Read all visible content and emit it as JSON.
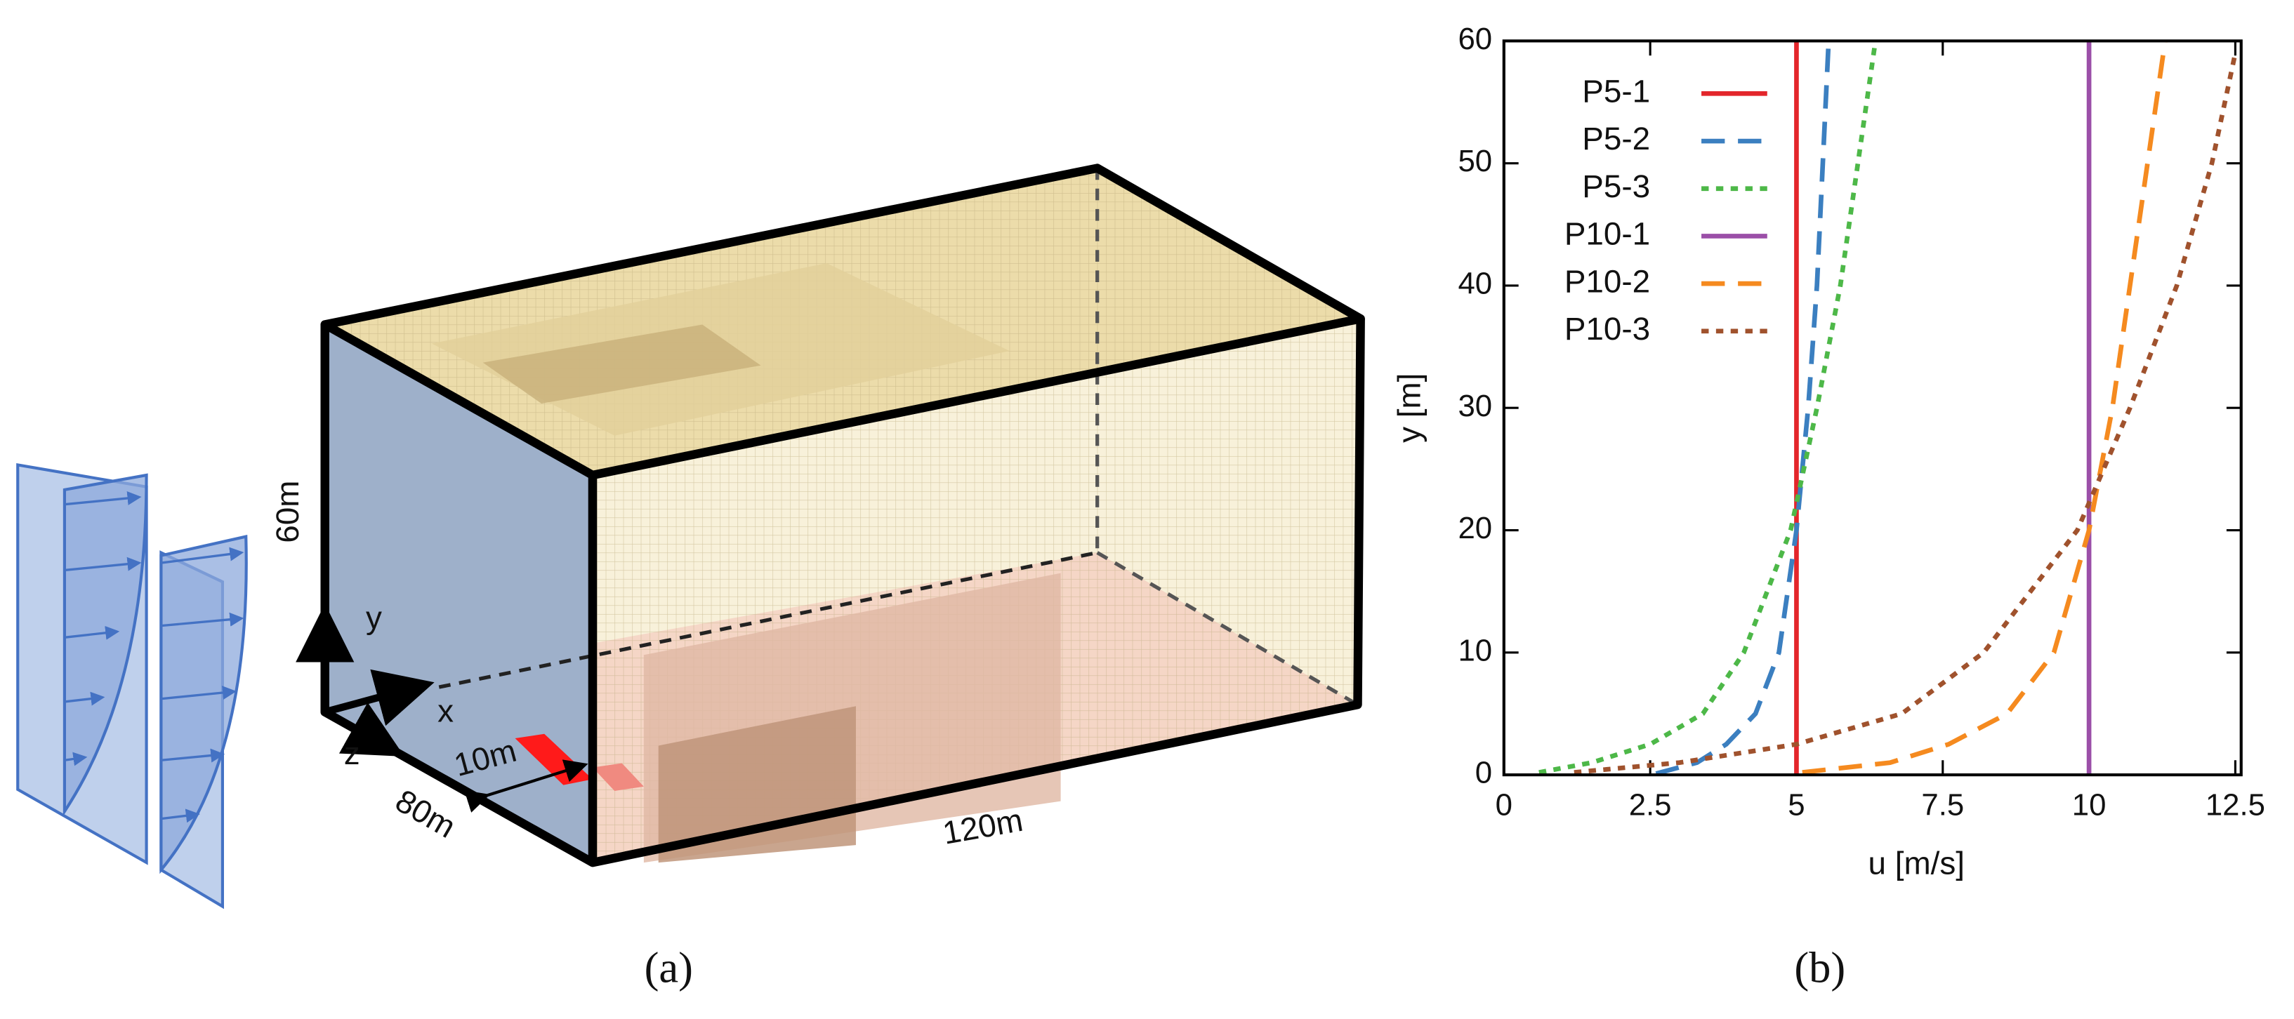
{
  "diagram": {
    "labels": [
      "60m",
      "y",
      "x",
      "z",
      "10m",
      "80m",
      "120m"
    ],
    "caption": "(a)"
  },
  "chart_data": {
    "type": "line",
    "caption": "(b)",
    "x_label": "u [m/s]",
    "y_label": "y [m]",
    "xlim": [
      0,
      12.6
    ],
    "ylim": [
      0,
      60
    ],
    "xticks": [
      0,
      2.5,
      5,
      7.5,
      10,
      12.5
    ],
    "yticks": [
      0,
      10,
      20,
      30,
      40,
      50,
      60
    ],
    "legend": "upper-left",
    "series": [
      {
        "name": "P5-1",
        "color": "#e3262b",
        "dash": "solid",
        "x": [
          5,
          5
        ],
        "y": [
          0,
          60
        ]
      },
      {
        "name": "P5-2",
        "color": "#3b7fc0",
        "dash": "dashed",
        "x": [
          2.6,
          3.3,
          3.8,
          4.3,
          4.7,
          5.0,
          5.2,
          5.35,
          5.45,
          5.55
        ],
        "y": [
          0.1,
          1,
          2.5,
          5,
          10,
          20,
          30,
          40,
          50,
          60
        ]
      },
      {
        "name": "P5-3",
        "color": "#4db848",
        "dash": "dotted",
        "x": [
          0.6,
          1.5,
          2.5,
          3.4,
          4.1,
          4.9,
          5.35,
          5.75,
          6.05,
          6.35
        ],
        "y": [
          0.2,
          1,
          2.5,
          5,
          10,
          20,
          30,
          40,
          50,
          60
        ]
      },
      {
        "name": "P10-1",
        "color": "#9b4fa8",
        "dash": "solid",
        "x": [
          10,
          10
        ],
        "y": [
          0,
          60
        ]
      },
      {
        "name": "P10-2",
        "color": "#f58a1f",
        "dash": "dashed",
        "x": [
          5.1,
          6.6,
          7.6,
          8.6,
          9.4,
          10.0,
          10.4,
          10.7,
          11.0,
          11.3
        ],
        "y": [
          0.2,
          1,
          2.5,
          5,
          10,
          20,
          30,
          40,
          50,
          60
        ]
      },
      {
        "name": "P10-3",
        "color": "#a0522d",
        "dash": "dotted",
        "x": [
          1.2,
          3.0,
          5.0,
          6.8,
          8.2,
          9.8,
          10.7,
          11.5,
          12.1,
          12.5
        ],
        "y": [
          0.2,
          1,
          2.5,
          5,
          10,
          20,
          30,
          40,
          50,
          59
        ]
      }
    ]
  }
}
